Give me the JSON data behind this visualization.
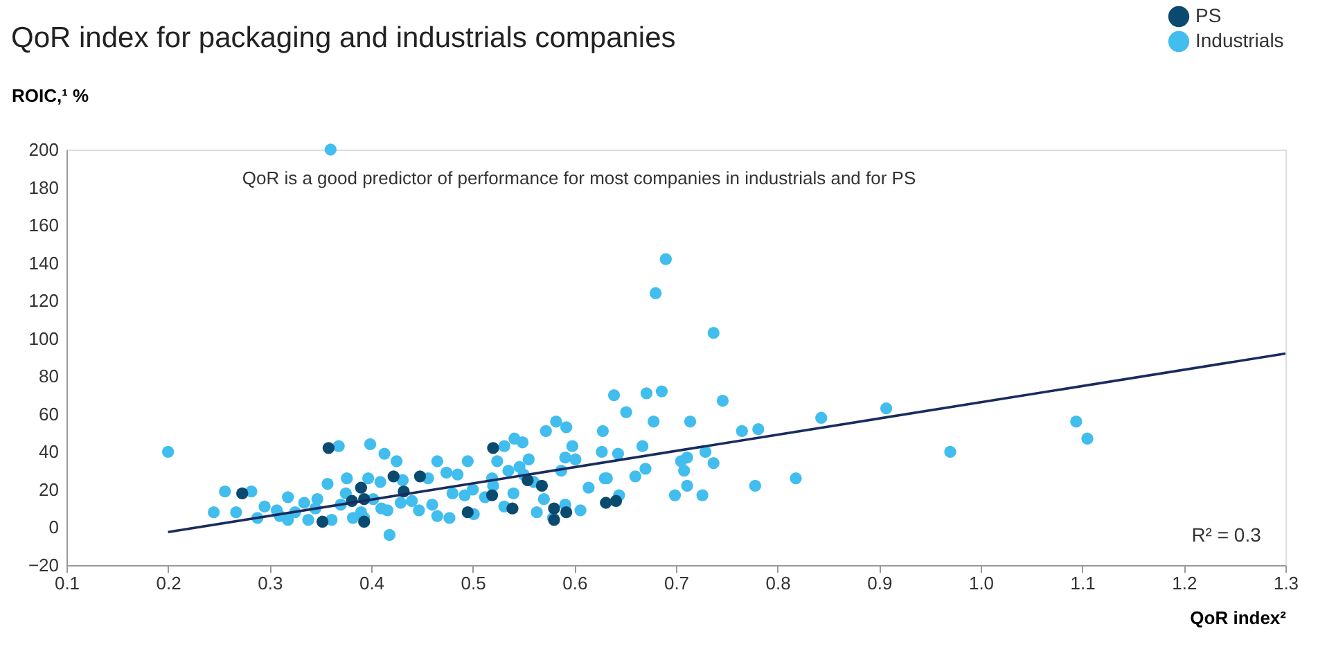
{
  "chart_data": {
    "type": "scatter",
    "title": "QoR index for packaging and industrials companies",
    "xlabel": "QoR index²",
    "ylabel": "ROIC,¹ %",
    "annotations": [
      "QoR is a good predictor of performance for most companies in industrials and for PS",
      "R² = 0.3"
    ],
    "xlim": [
      0.1,
      1.3
    ],
    "ylim": [
      -20,
      200
    ],
    "xticks": [
      0.1,
      0.2,
      0.3,
      0.4,
      0.5,
      0.6,
      0.7,
      0.8,
      0.9,
      {
        "value": 1,
        "label": "1.0"
      },
      1.1,
      1.2,
      1.3
    ],
    "yticks": [
      {
        "value": -20,
        "label": "−20"
      },
      0,
      20,
      40,
      60,
      80,
      100,
      120,
      140,
      160,
      180,
      200
    ],
    "grid": false,
    "legend": "top right",
    "marker": "circle",
    "series": [
      {
        "name": "PS",
        "color": "#0b4a6f",
        "x": [
          0.358,
          0.273,
          0.352,
          0.39,
          0.393,
          0.381,
          0.422,
          0.432,
          0.448,
          0.495,
          0.52,
          0.554,
          0.568,
          0.519,
          0.539,
          0.58,
          0.58,
          0.592,
          0.631,
          0.641,
          0.393
        ],
        "values": [
          42,
          18,
          3,
          21,
          15,
          14,
          27,
          19,
          27,
          8,
          42,
          25,
          22,
          17,
          10,
          10,
          4,
          8,
          13,
          14,
          3
        ]
      },
      {
        "name": "Industrials",
        "color": "#41bdee",
        "x": [
          0.36,
          0.2,
          0.69,
          0.68,
          0.737,
          0.907,
          0.843,
          0.97,
          1.094,
          1.105,
          0.818,
          0.778,
          0.765,
          0.781,
          0.746,
          0.714,
          0.678,
          0.639,
          0.671,
          0.686,
          0.651,
          0.628,
          0.627,
          0.643,
          0.667,
          0.729,
          0.705,
          0.711,
          0.737,
          0.708,
          0.67,
          0.66,
          0.711,
          0.699,
          0.726,
          0.614,
          0.63,
          0.644,
          0.368,
          0.399,
          0.413,
          0.425,
          0.282,
          0.267,
          0.288,
          0.295,
          0.307,
          0.318,
          0.318,
          0.334,
          0.338,
          0.347,
          0.357,
          0.361,
          0.375,
          0.376,
          0.382,
          0.397,
          0.393,
          0.402,
          0.409,
          0.418,
          0.416,
          0.429,
          0.431,
          0.447,
          0.456,
          0.465,
          0.474,
          0.485,
          0.495,
          0.492,
          0.477,
          0.465,
          0.501,
          0.512,
          0.519,
          0.524,
          0.531,
          0.541,
          0.549,
          0.535,
          0.546,
          0.555,
          0.56,
          0.531,
          0.563,
          0.572,
          0.582,
          0.592,
          0.598,
          0.591,
          0.601,
          0.587,
          0.579,
          0.591,
          0.606,
          0.632,
          0.245,
          0.256,
          0.31,
          0.325,
          0.345,
          0.37,
          0.39,
          0.41,
          0.44,
          0.46,
          0.48,
          0.5,
          0.52,
          0.54,
          0.55,
          0.57
        ],
        "values": [
          200,
          40,
          142,
          124,
          103,
          63,
          58,
          40,
          56,
          47,
          26,
          22,
          51,
          52,
          67,
          56,
          56,
          70,
          71,
          72,
          61,
          51,
          40,
          39,
          43,
          40,
          35,
          37,
          34,
          30,
          31,
          27,
          22,
          17,
          17,
          21,
          26,
          17,
          43,
          44,
          39,
          35,
          19,
          8,
          5,
          11,
          9,
          16,
          4,
          13,
          4,
          15,
          23,
          4,
          18,
          26,
          5,
          26,
          5,
          15,
          24,
          -4,
          9,
          13,
          25,
          9,
          26,
          35,
          29,
          28,
          35,
          17,
          5,
          6,
          7,
          16,
          26,
          35,
          43,
          47,
          45,
          30,
          32,
          36,
          24,
          11,
          8,
          51,
          56,
          53,
          43,
          37,
          36,
          30,
          5,
          12,
          9,
          26,
          8,
          19,
          6,
          8,
          10,
          12,
          8,
          10,
          14,
          12,
          18,
          20,
          22,
          18,
          28,
          15
        ]
      },
      {
        "type": "line",
        "marker": "none",
        "color": "#1a2b5e",
        "x": [
          0.2,
          1.3
        ],
        "values": [
          -2.5,
          92
        ]
      }
    ]
  }
}
